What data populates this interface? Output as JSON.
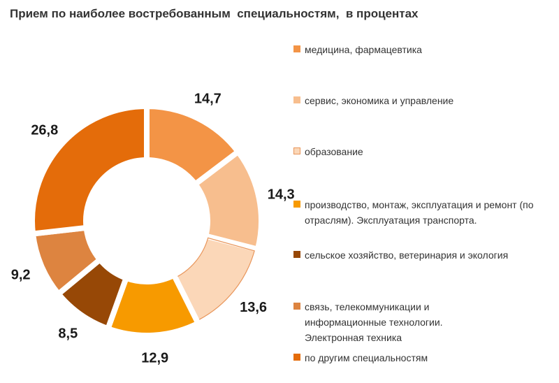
{
  "chart_data": {
    "type": "pie",
    "variant": "donut",
    "title": "Прием по наиболее востребованным  специальностям,  в процентах",
    "series": [
      {
        "name": "медицина, фармацевтика",
        "value": 14.7,
        "label": "14,7",
        "color": "#F39446"
      },
      {
        "name": "сервис, экономика и управление",
        "value": 14.3,
        "label": "14,3",
        "color": "#F7BE8E"
      },
      {
        "name": "образование",
        "value": 13.6,
        "label": "13,6",
        "color": "#FBD7B8",
        "border": "#E8955A"
      },
      {
        "name": "производство, монтаж, эксплуатация и ремонт (по отраслям). Эксплуатация транспорта.",
        "value": 12.9,
        "label": "12,9",
        "color": "#F79A00"
      },
      {
        "name": "сельское хозяйство, ветеринария  и экология",
        "value": 8.5,
        "label": "8,5",
        "color": "#974806"
      },
      {
        "name": "связь, телекоммуникации и информационные  технологии. Электронная техника",
        "value": 9.2,
        "label": "9,2",
        "color": "#DD8440"
      },
      {
        "name": "по другим специальностям",
        "value": 26.8,
        "label": "26,8",
        "color": "#E46C0A"
      }
    ],
    "legend_position": "right"
  }
}
